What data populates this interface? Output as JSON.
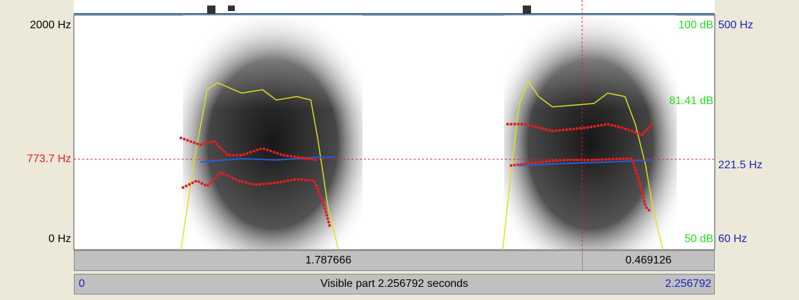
{
  "left_axis": {
    "top": "2000 Hz",
    "cursor": "773.7 Hz",
    "bottom": "0 Hz"
  },
  "right_db_axis": {
    "top": "100 dB",
    "cursor": "81.41 dB",
    "bottom": "50 dB"
  },
  "right_hz_axis": {
    "top": "500 Hz",
    "cursor": "221.5 Hz",
    "bottom": "60 Hz"
  },
  "time_bar": {
    "left": "1.787666",
    "right": "0.469126"
  },
  "visible_bar": {
    "start": "0",
    "label": "Visible part 2.256792 seconds",
    "end": "2.256792"
  }
}
